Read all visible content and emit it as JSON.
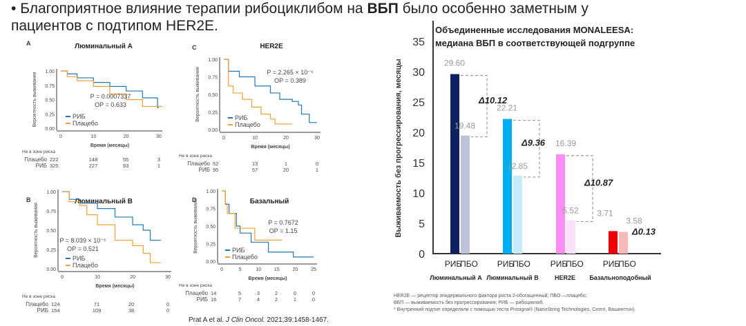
{
  "headline": {
    "bullet": "•",
    "part1": "Благоприятное влияние терапии рибоциклибом на ",
    "bold": "ВБП",
    "part2": " было особенно заметным у пациентов с подтипом HER2E."
  },
  "citation": {
    "authors": "Prat A et al. ",
    "journal": "J Clin Oncol.",
    "rest": " 2021;39:1458-1467."
  },
  "colors": {
    "rib": "#1f77b4",
    "placebo": "#f0a030"
  },
  "chart_data": [
    {
      "type": "line",
      "panel": "A",
      "title": "Люминальный A",
      "xlabel": "Время (месяцы)",
      "ylabel": "Вероятность выживания",
      "xticks": [
        "0",
        "10",
        "20",
        "30"
      ],
      "xlim": [
        0,
        30
      ],
      "yticks": [
        "0.00",
        "0.25",
        "0.50",
        "0.75",
        "1.00"
      ],
      "ylim": [
        0,
        1
      ],
      "p": "P = 0.0007337",
      "hr": "ОР = 0.633",
      "legend": [
        "РИБ",
        "Плацебо"
      ],
      "series": [
        {
          "name": "РИБ",
          "points": [
            [
              0,
              1
            ],
            [
              2,
              0.95
            ],
            [
              5,
              0.88
            ],
            [
              10,
              0.8
            ],
            [
              15,
              0.73
            ],
            [
              20,
              0.65
            ],
            [
              25,
              0.53
            ],
            [
              29.5,
              0.52
            ],
            [
              29.6,
              0.36
            ],
            [
              30,
              0.36
            ]
          ]
        },
        {
          "name": "Плацебо",
          "points": [
            [
              0,
              1
            ],
            [
              2,
              0.9
            ],
            [
              5,
              0.83
            ],
            [
              10,
              0.73
            ],
            [
              15,
              0.6
            ],
            [
              20,
              0.5
            ],
            [
              25,
              0.38
            ],
            [
              31,
              0.38
            ]
          ]
        }
      ],
      "risk": {
        "title": "Не в зоне риска",
        "rows": [
          {
            "label": "Плацебо",
            "values": [
              "222",
              "148",
              "55",
              "3"
            ]
          },
          {
            "label": "РИБ",
            "values": [
              "320",
              "227",
              "93",
              "1"
            ]
          }
        ]
      }
    },
    {
      "type": "line",
      "panel": "C",
      "title": "HER2E",
      "xlabel": "Время (месяцы)",
      "ylabel": "Вероятность выживания",
      "xticks": [
        "0",
        "10",
        "20",
        "30"
      ],
      "xlim": [
        0,
        30
      ],
      "yticks": [
        "0.00",
        "0.25",
        "0.50",
        "0.75",
        "1.00"
      ],
      "ylim": [
        0,
        1
      ],
      "p": "P = 2.265 × 10⁻⁵",
      "hr": "ОР = 0.389",
      "legend": [
        "РИБ",
        "Плацебо"
      ],
      "series": [
        {
          "name": "РИБ",
          "points": [
            [
              0,
              1
            ],
            [
              1.5,
              0.83
            ],
            [
              5,
              0.75
            ],
            [
              10,
              0.62
            ],
            [
              15,
              0.52
            ],
            [
              18,
              0.43
            ],
            [
              22,
              0.4
            ],
            [
              24,
              0.35
            ],
            [
              25,
              0.22
            ],
            [
              27.5,
              0.1
            ],
            [
              30,
              0.1
            ]
          ]
        },
        {
          "name": "Плацебо",
          "points": [
            [
              0,
              1
            ],
            [
              1.5,
              0.62
            ],
            [
              3,
              0.52
            ],
            [
              6,
              0.43
            ],
            [
              9,
              0.32
            ],
            [
              12,
              0.22
            ],
            [
              15,
              0.15
            ],
            [
              16.5,
              0.08
            ],
            [
              22,
              0.08
            ]
          ]
        }
      ],
      "risk": {
        "title": "Не в зоне риска",
        "rows": [
          {
            "label": "Плацебо",
            "values": [
              "52",
              "13",
              "1",
              "0"
            ]
          },
          {
            "label": "РИБ",
            "values": [
              "95",
              "57",
              "20",
              "1"
            ]
          }
        ]
      }
    },
    {
      "type": "line",
      "panel": "B",
      "title": "Люминальный B",
      "xlabel": "Время (месяцы)",
      "ylabel": "Вероятность выживания",
      "xticks": [
        "0",
        "10",
        "20",
        "30"
      ],
      "xlim": [
        0,
        30
      ],
      "yticks": [
        "0.00",
        "0.25",
        "0.50",
        "0.75",
        "1.00"
      ],
      "ylim": [
        0,
        1
      ],
      "p": "P = 8.039 × 10⁻⁵",
      "hr": "ОР = 0.521",
      "legend": [
        "РИБ",
        "Плацебо"
      ],
      "series": [
        {
          "name": "РИБ",
          "points": [
            [
              0,
              1
            ],
            [
              2,
              0.9
            ],
            [
              5,
              0.85
            ],
            [
              10,
              0.78
            ],
            [
              15,
              0.67
            ],
            [
              20,
              0.57
            ],
            [
              23,
              0.5
            ],
            [
              25,
              0.37
            ],
            [
              28,
              0.37
            ]
          ]
        },
        {
          "name": "Плацебо",
          "points": [
            [
              0,
              1
            ],
            [
              2,
              0.87
            ],
            [
              5,
              0.82
            ],
            [
              7,
              0.7
            ],
            [
              10,
              0.57
            ],
            [
              15,
              0.37
            ],
            [
              20,
              0.3
            ],
            [
              23,
              0.2
            ],
            [
              25,
              0.08
            ],
            [
              28,
              0.08
            ]
          ]
        }
      ],
      "risk": {
        "title": "Не в зоне риска",
        "rows": [
          {
            "label": "Плацебо",
            "values": [
              "124",
              "71",
              "20",
              "0"
            ]
          },
          {
            "label": "РИБ",
            "values": [
              "154",
              "109",
              "38",
              "0"
            ]
          }
        ]
      }
    },
    {
      "type": "line",
      "panel": "D",
      "title": "Базальный",
      "xlabel": "Время (месяцы)",
      "ylabel": "Вероятность выживания",
      "xticks": [
        "0",
        "5",
        "10",
        "15",
        "20",
        "25"
      ],
      "xlim": [
        0,
        25
      ],
      "yticks": [
        "0.00",
        "0.25",
        "0.50",
        "0.75",
        "1.00"
      ],
      "ylim": [
        0,
        1
      ],
      "p": "P = 0.7672",
      "hr": "ОР = 1.15",
      "legend": [
        "РИБ",
        "Плацебо"
      ],
      "series": [
        {
          "name": "РИБ",
          "points": [
            [
              0,
              1
            ],
            [
              1,
              0.81
            ],
            [
              2,
              0.68
            ],
            [
              4,
              0.5
            ],
            [
              5,
              0.4
            ],
            [
              8,
              0.27
            ],
            [
              12.7,
              0.13
            ],
            [
              19.5,
              0.06
            ],
            [
              25,
              0.06
            ]
          ]
        },
        {
          "name": "Плацебо",
          "points": [
            [
              0,
              1
            ],
            [
              1,
              0.82
            ],
            [
              1.5,
              0.68
            ],
            [
              3.5,
              0.68
            ],
            [
              3.6,
              0.47
            ],
            [
              7,
              0.47
            ],
            [
              9,
              0.3
            ],
            [
              16.5,
              0.3
            ]
          ]
        }
      ],
      "risk": {
        "title": "Не в зоне риска",
        "rows": [
          {
            "label": "Плацебо",
            "values": [
              "14",
              "5",
              "3",
              "2",
              "0",
              "0"
            ]
          },
          {
            "label": "РИБ",
            "values": [
              "16",
              "7",
              "4",
              "2",
              "1",
              "0"
            ]
          }
        ]
      }
    },
    {
      "type": "bar",
      "title": [
        "Объединенные исследования MONALEESA:",
        "медиана ВБП в соответствующей подгруппе"
      ],
      "ylabel": "Выживаемость без прогрессирования, месяцы",
      "ylim": [
        0,
        35
      ],
      "yticks": [
        "0",
        "5",
        "10",
        "15",
        "20",
        "25",
        "30",
        "35"
      ],
      "categories": [
        "Люминальный A",
        "Люминальный B",
        "HER2E",
        "Базальноподобный"
      ],
      "bar_labels": [
        "РИБ",
        "ПБО"
      ],
      "series": [
        {
          "name": "РИБ",
          "values": [
            29.6,
            22.21,
            16.39,
            3.71
          ],
          "labels": [
            "29.60",
            "22.21",
            "16.39",
            "3.71"
          ],
          "colors": [
            "#0d2160",
            "#00aeef",
            "#f98cf5",
            "#ee0000"
          ]
        },
        {
          "name": "ПБО",
          "values": [
            19.48,
            12.85,
            5.52,
            3.58
          ],
          "labels": [
            "19.48",
            "12.85",
            "5.52",
            "3.58"
          ],
          "colors": [
            "#c0c3d8",
            "#c4ecfa",
            "#fde0fb",
            "#f9b8b8"
          ]
        }
      ],
      "deltas": [
        "Δ10.12",
        "Δ9.36",
        "Δ10.87",
        "Δ0.13"
      ]
    }
  ],
  "footnotes": [
    "HER2E — рецептор эпидермального фактора роста 2-обогащенный; ПБО —плацебо;",
    "ВБП — выживаемость без прогрессирования; РИБ — рибоциклиб.",
    "* Внутренний подтип определяли с помощью теста Prosigna® (NanoString Technologies, Сиэтл, Вашингтон)."
  ]
}
